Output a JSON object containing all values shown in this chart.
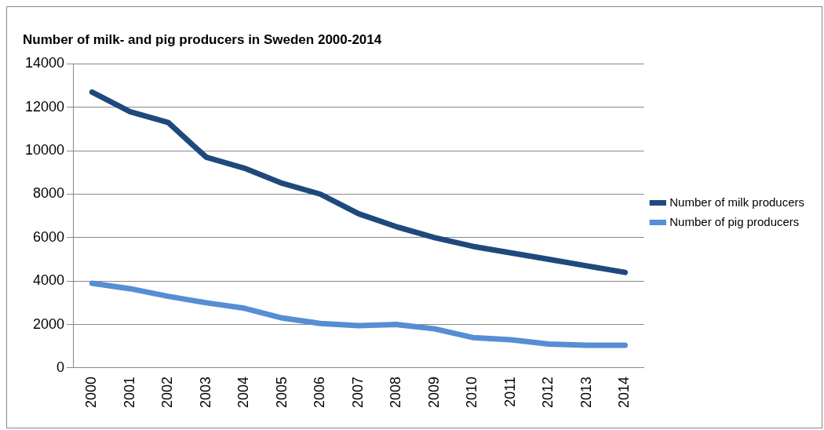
{
  "chart_data": {
    "type": "line",
    "title": "Number of milk- and pig producers in Sweden 2000-2014",
    "categories": [
      "2000",
      "2001",
      "2002",
      "2003",
      "2004",
      "2005",
      "2006",
      "2007",
      "2008",
      "2009",
      "2010",
      "2011",
      "2012",
      "2013",
      "2014"
    ],
    "series": [
      {
        "name": "Number of milk producers",
        "color": "#1f497d",
        "values": [
          12700,
          11800,
          11300,
          9700,
          9200,
          8500,
          8000,
          7100,
          6500,
          6000,
          5600,
          5300,
          5000,
          4700,
          4400
        ]
      },
      {
        "name": "Number of pig producers",
        "color": "#558ed5",
        "values": [
          3900,
          3650,
          3300,
          3000,
          2750,
          2300,
          2050,
          1950,
          2000,
          1800,
          1400,
          1300,
          1100,
          1050,
          1050
        ]
      }
    ],
    "ylim": [
      0,
      14000
    ],
    "yticks": [
      0,
      2000,
      4000,
      6000,
      8000,
      10000,
      12000,
      14000
    ],
    "grid": "y",
    "legend": "right",
    "marker": "none",
    "line_style": "solid"
  }
}
